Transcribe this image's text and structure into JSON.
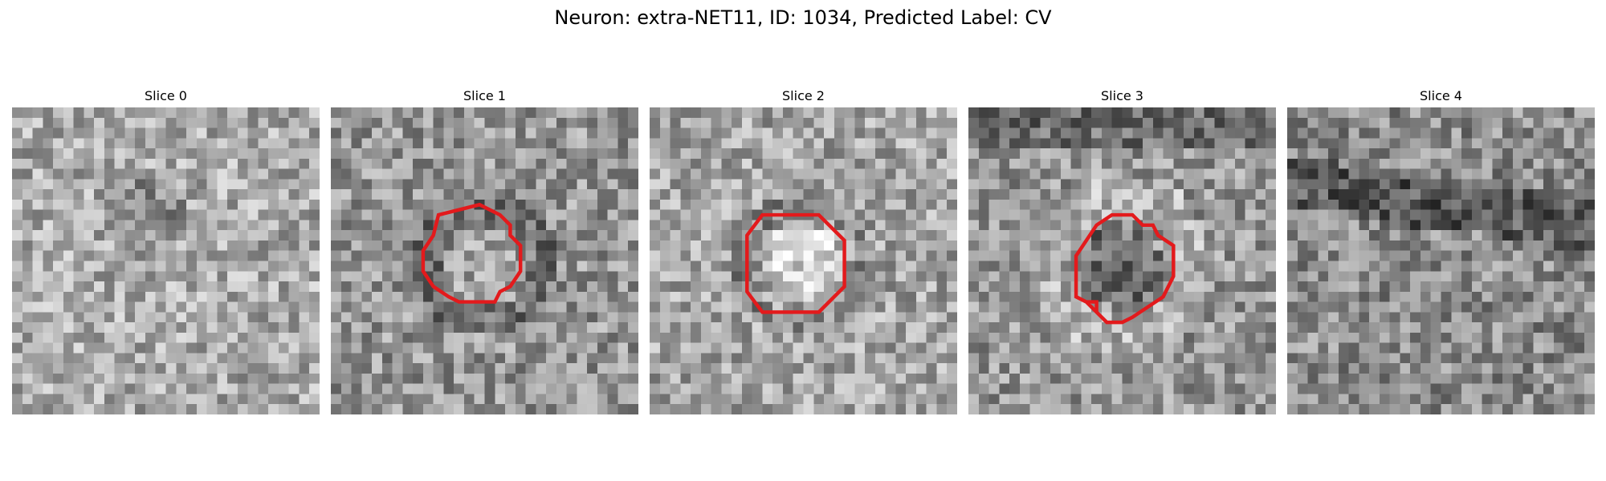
{
  "figure": {
    "title": "Neuron: extra-NET11, ID: 1034, Predicted Label: CV"
  },
  "slices": [
    {
      "title": "Slice 0",
      "has_contour": false,
      "seed": 11,
      "pattern": "ring-faint"
    },
    {
      "title": "Slice 1",
      "has_contour": true,
      "seed": 23,
      "pattern": "dark-ring"
    },
    {
      "title": "Slice 2",
      "has_contour": true,
      "seed": 37,
      "pattern": "bright-center"
    },
    {
      "title": "Slice 3",
      "has_contour": true,
      "seed": 53,
      "pattern": "dark-center"
    },
    {
      "title": "Slice 4",
      "has_contour": false,
      "seed": 71,
      "pattern": "band"
    }
  ],
  "colors": {
    "contour": "#e31a1c"
  }
}
